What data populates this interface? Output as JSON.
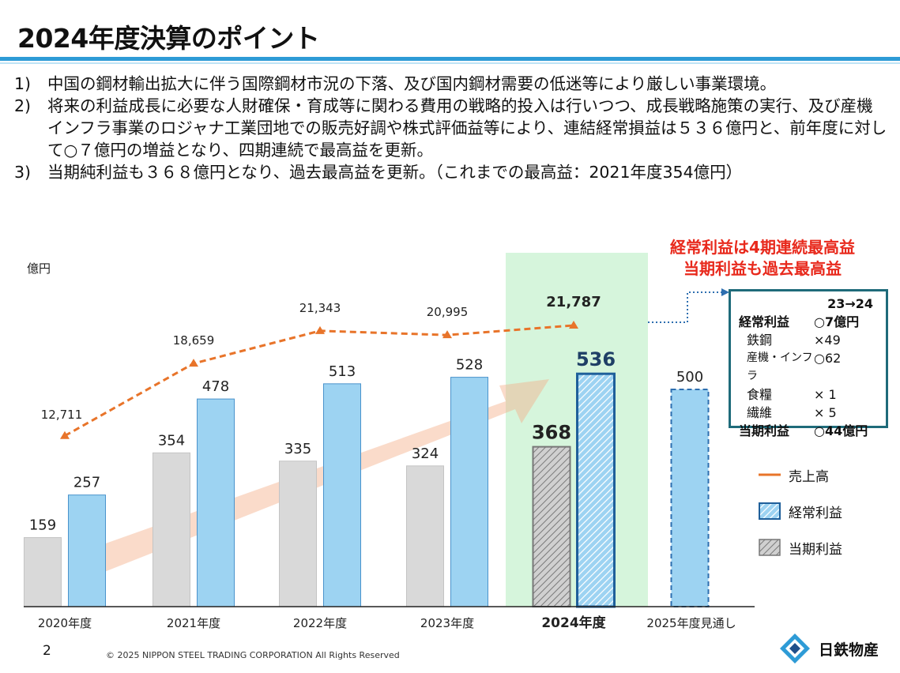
{
  "title": "2024年度決算のポイント",
  "points": [
    {
      "num": "1)",
      "text": "中国の鋼材輸出拡大に伴う国際鋼材市況の下落、及び国内鋼材需要の低迷等により厳しい事業環境。"
    },
    {
      "num": "2)",
      "text": "将来の利益成長に必要な人財確保・育成等に関わる費用の戦略的投入は行いつつ、成長戦略施策の実行、及び産機インフラ事業のロジャナ工業団地での販売好調や株式評価益等により、連結経常損益は５３６億円と、前年度に対して○７億円の増益となり、四期連続で最高益を更新。"
    },
    {
      "num": "3)",
      "text": "当期純利益も３６８億円となり、過去最高益を更新。（これまでの最高益：2021年度354億円）"
    }
  ],
  "headline": [
    "経常利益は4期連続最高益",
    "当期利益も過去最高益"
  ],
  "callout": {
    "header": "23→24",
    "rows": [
      {
        "label": "経常利益",
        "value": "○7億円",
        "bold": true
      },
      {
        "label": "鉄鋼",
        "value": "×49",
        "bold": false
      },
      {
        "label": "産機・インフラ",
        "value": "○62",
        "bold": false
      },
      {
        "label": "食糧",
        "value": "×  1",
        "bold": false
      },
      {
        "label": "繊維",
        "value": "×  5",
        "bold": false
      },
      {
        "label": "当期利益",
        "value": "○44億円",
        "bold": true
      }
    ]
  },
  "legend": [
    {
      "label": "売上高",
      "icon": "dashed-line"
    },
    {
      "label": "経常利益",
      "icon": "hatched-blue"
    },
    {
      "label": "当期利益",
      "icon": "hatched-gray"
    }
  ],
  "chart_data": {
    "type": "bar",
    "ylabel": "億円",
    "categories": [
      "2020年度",
      "2021年度",
      "2022年度",
      "2023年度",
      "2024年度",
      "2025年度見通し"
    ],
    "highlight_category": "2024年度",
    "series": [
      {
        "name": "当期利益",
        "values": [
          159,
          354,
          335,
          324,
          368,
          null
        ],
        "labels": [
          "159",
          "354",
          "335",
          "324",
          "368",
          ""
        ]
      },
      {
        "name": "経常利益",
        "values": [
          257,
          478,
          513,
          528,
          536,
          500
        ],
        "labels": [
          "257",
          "478",
          "513",
          "528",
          "536",
          "500"
        ]
      },
      {
        "name": "売上高",
        "type": "line",
        "values": [
          12711,
          18659,
          21343,
          20995,
          21787,
          null
        ],
        "labels": [
          "12,711",
          "18,659",
          "21,343",
          "20,995",
          "21,787",
          ""
        ]
      }
    ],
    "ylim_bars": [
      0,
      700
    ],
    "ylim_line": [
      0,
      28000
    ]
  },
  "colors": {
    "accent": "#2e9bd6",
    "bar_ordinary": "#9dd3f2",
    "bar_net": "#d9d9d9",
    "line": "#e8742a",
    "highlight": "#d6f5dc",
    "headline": "#e8291c"
  },
  "footer": {
    "page": "2",
    "copyright": "© 2025 NIPPON STEEL TRADING CORPORATION All Rights Reserved",
    "company": "日鉄物産"
  }
}
